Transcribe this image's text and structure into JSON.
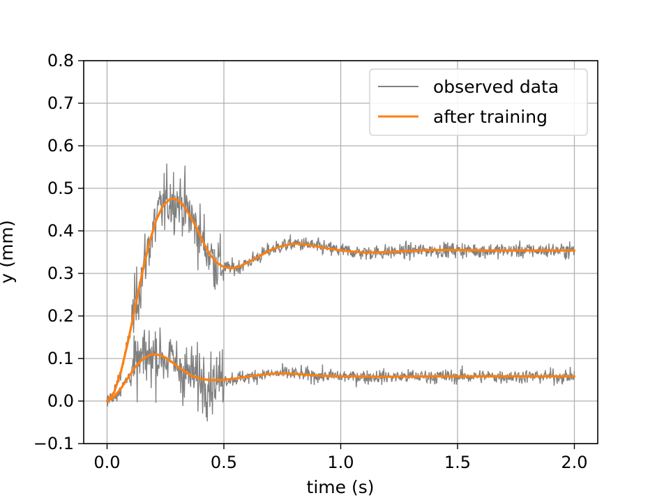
{
  "chart_data": {
    "type": "line",
    "title": "",
    "xlabel": "time (s)",
    "ylabel": "y (mm)",
    "xlim": [
      -0.1,
      2.1
    ],
    "ylim": [
      -0.1,
      0.8
    ],
    "xticks": [
      0.0,
      0.5,
      1.0,
      1.5,
      2.0
    ],
    "xtick_labels": [
      "0.0",
      "0.5",
      "1.0",
      "1.5",
      "2.0"
    ],
    "yticks": [
      -0.1,
      0.0,
      0.1,
      0.2,
      0.3,
      0.4,
      0.5,
      0.6,
      0.7,
      0.8
    ],
    "ytick_labels": [
      "−0.1",
      "0.0",
      "0.1",
      "0.2",
      "0.3",
      "0.4",
      "0.5",
      "0.6",
      "0.7",
      "0.8"
    ],
    "grid": true,
    "legend_position": "top-right",
    "legend": [
      {
        "label": "observed data",
        "color": "#808080"
      },
      {
        "label": "after training",
        "color": "#ff7f0e"
      }
    ],
    "series": [
      {
        "name": "after training (response 1)",
        "color": "#ff7f0e",
        "x": [
          0.0,
          0.03,
          0.06,
          0.09,
          0.12,
          0.15,
          0.18,
          0.21,
          0.24,
          0.27,
          0.29,
          0.32,
          0.35,
          0.38,
          0.41,
          0.44,
          0.47,
          0.5,
          0.53,
          0.56,
          0.6,
          0.65,
          0.7,
          0.75,
          0.8,
          0.85,
          0.9,
          0.95,
          1.0,
          1.1,
          1.2,
          1.3,
          1.4,
          1.5,
          1.6,
          1.7,
          1.8,
          1.9,
          2.0
        ],
        "y": [
          0.0,
          0.02,
          0.07,
          0.14,
          0.22,
          0.3,
          0.37,
          0.425,
          0.46,
          0.475,
          0.475,
          0.465,
          0.44,
          0.41,
          0.375,
          0.345,
          0.325,
          0.315,
          0.312,
          0.315,
          0.325,
          0.34,
          0.355,
          0.365,
          0.37,
          0.368,
          0.363,
          0.358,
          0.354,
          0.349,
          0.35,
          0.353,
          0.355,
          0.355,
          0.354,
          0.354,
          0.354,
          0.354,
          0.354
        ]
      },
      {
        "name": "after training (response 2)",
        "color": "#ff7f0e",
        "x": [
          0.0,
          0.03,
          0.06,
          0.09,
          0.12,
          0.15,
          0.18,
          0.21,
          0.24,
          0.27,
          0.3,
          0.33,
          0.36,
          0.4,
          0.45,
          0.5,
          0.55,
          0.6,
          0.65,
          0.7,
          0.75,
          0.8,
          0.85,
          0.9,
          1.0,
          1.2,
          1.4,
          1.6,
          1.8,
          2.0
        ],
        "y": [
          0.0,
          0.01,
          0.03,
          0.055,
          0.08,
          0.097,
          0.108,
          0.11,
          0.105,
          0.095,
          0.082,
          0.07,
          0.06,
          0.052,
          0.049,
          0.05,
          0.053,
          0.057,
          0.061,
          0.064,
          0.065,
          0.064,
          0.062,
          0.06,
          0.058,
          0.057,
          0.058,
          0.058,
          0.058,
          0.058
        ]
      },
      {
        "name": "observed data (response 1)",
        "color": "#808080",
        "noise_std": 0.015,
        "high_noise_interval": [
          0.1,
          0.5
        ],
        "high_noise_std": 0.06,
        "x_range": [
          0.0,
          2.0
        ],
        "baseline": "after training (response 1)"
      },
      {
        "name": "observed data (response 2)",
        "color": "#808080",
        "noise_std": 0.014,
        "high_noise_interval": [
          0.1,
          0.5
        ],
        "high_noise_std": 0.06,
        "x_range": [
          0.0,
          2.0
        ],
        "baseline": "after training (response 2)"
      }
    ]
  }
}
